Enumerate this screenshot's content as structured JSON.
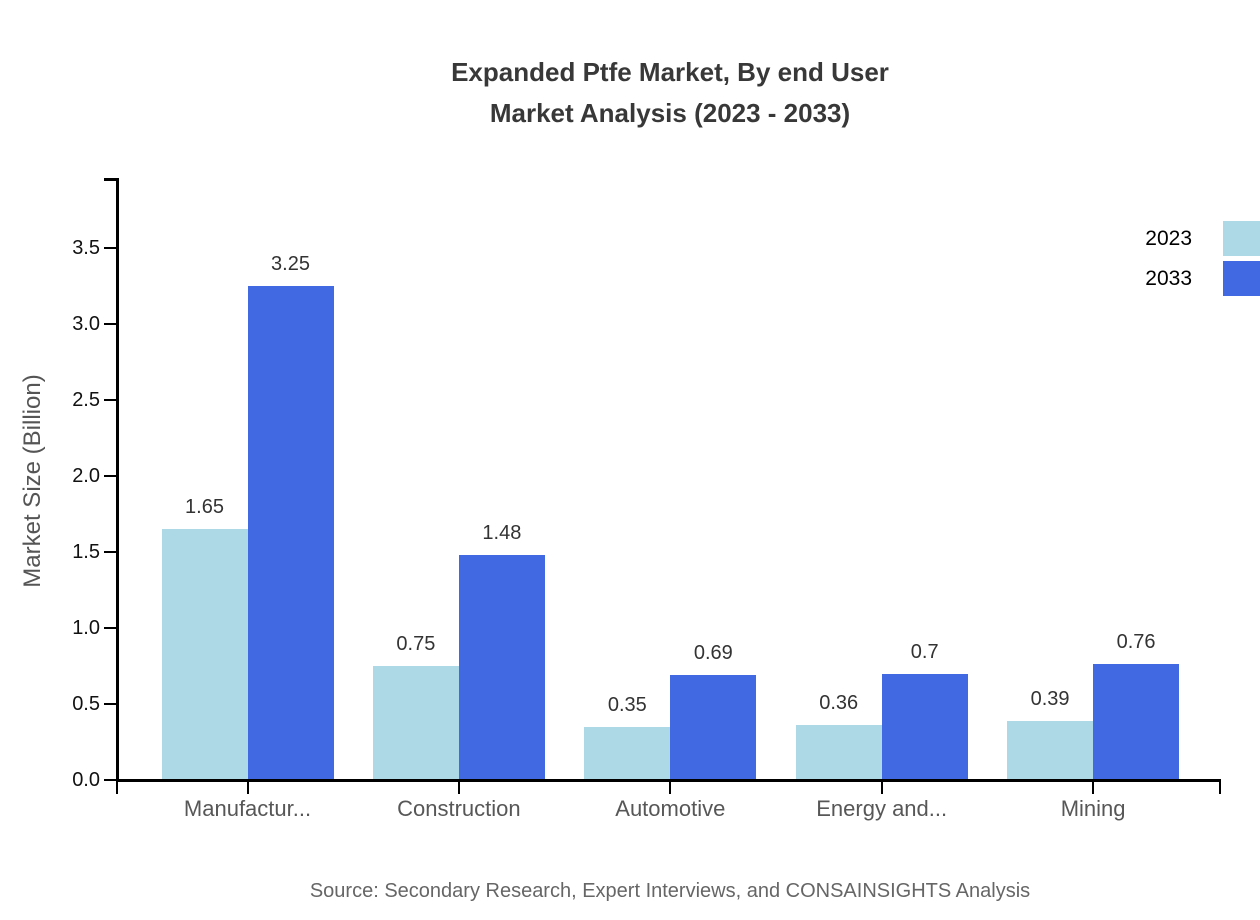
{
  "title": {
    "line1": "Expanded Ptfe Market, By end User",
    "line2": "Market Analysis (2023 - 2033)"
  },
  "source": "Source: Secondary Research, Expert Interviews, and CONSAINSIGHTS Analysis",
  "legend": {
    "items": [
      {
        "label": "2023",
        "color": "#ADD8E6"
      },
      {
        "label": "2033",
        "color": "#4169E1"
      }
    ]
  },
  "chart_data": {
    "type": "bar",
    "title": "Expanded Ptfe Market, By end User Market Analysis (2023 - 2033)",
    "categories": [
      "Manufactur...",
      "Construction",
      "Automotive",
      "Energy and...",
      "Mining"
    ],
    "series": [
      {
        "name": "2023",
        "color": "#ADD8E6",
        "values": [
          1.65,
          0.75,
          0.35,
          0.36,
          0.39
        ]
      },
      {
        "name": "2033",
        "color": "#4169E1",
        "values": [
          3.25,
          1.48,
          0.69,
          0.7,
          0.76
        ]
      }
    ],
    "xlabel": "",
    "ylabel": "Market Size (Billion)",
    "ylim": [
      0,
      3.96
    ],
    "yticks": [
      0.0,
      0.5,
      1.0,
      1.5,
      2.0,
      2.5,
      3.0,
      3.5
    ],
    "grid": false,
    "value_labels": true,
    "legend_position": "top-right"
  }
}
